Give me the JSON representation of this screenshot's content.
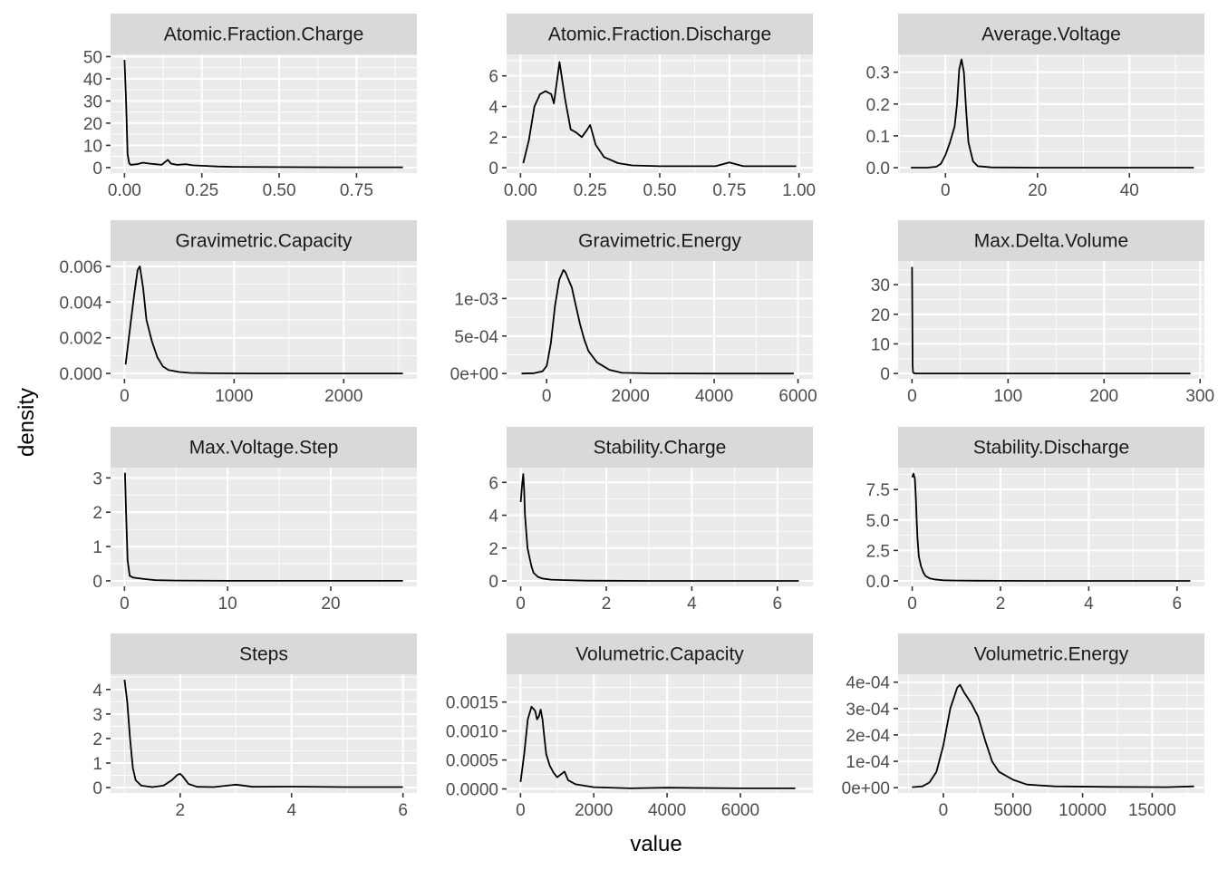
{
  "figure": {
    "xlabel": "value",
    "ylabel": "density",
    "panel_bg": "#ebebeb",
    "strip_bg": "#d9d9d9",
    "grid_major": "#ffffff",
    "line_color": "#000000"
  },
  "chart_data": [
    {
      "type": "line",
      "title": "Atomic.Fraction.Charge",
      "xlim": [
        -0.045,
        0.945
      ],
      "ylim": [
        -2.5,
        51
      ],
      "xticks": [
        0,
        0.25,
        0.5,
        0.75
      ],
      "xtick_labels": [
        "0.00",
        "0.25",
        "0.50",
        "0.75"
      ],
      "yticks": [
        0,
        10,
        20,
        30,
        40,
        50
      ],
      "ytick_labels": [
        "0",
        "10",
        "20",
        "30",
        "40",
        "50"
      ],
      "x": [
        0,
        0.005,
        0.01,
        0.015,
        0.02,
        0.04,
        0.06,
        0.08,
        0.1,
        0.12,
        0.14,
        0.15,
        0.17,
        0.2,
        0.22,
        0.25,
        0.3,
        0.35,
        0.5,
        0.7,
        0.9
      ],
      "y": [
        48.5,
        30,
        6,
        2,
        1.2,
        1.5,
        2.2,
        1.8,
        1.5,
        1.2,
        3.5,
        1.8,
        1.2,
        1.5,
        1.0,
        0.8,
        0.5,
        0.3,
        0.2,
        0.1,
        0.1
      ]
    },
    {
      "type": "line",
      "title": "Atomic.Fraction.Discharge",
      "xlim": [
        -0.05,
        1.05
      ],
      "ylim": [
        -0.35,
        7.4
      ],
      "xticks": [
        0,
        0.25,
        0.5,
        0.75,
        1.0
      ],
      "xtick_labels": [
        "0.00",
        "0.25",
        "0.50",
        "0.75",
        "1.00"
      ],
      "yticks": [
        0,
        2,
        4,
        6
      ],
      "ytick_labels": [
        "0",
        "2",
        "4",
        "6"
      ],
      "x": [
        0.01,
        0.03,
        0.05,
        0.07,
        0.09,
        0.11,
        0.12,
        0.14,
        0.16,
        0.18,
        0.2,
        0.22,
        0.24,
        0.25,
        0.27,
        0.3,
        0.35,
        0.4,
        0.5,
        0.6,
        0.7,
        0.75,
        0.8,
        0.9,
        0.99
      ],
      "y": [
        0.3,
        1.8,
        4.0,
        4.8,
        5.0,
        4.8,
        4.2,
        6.9,
        4.5,
        2.5,
        2.3,
        2.0,
        2.5,
        2.8,
        1.5,
        0.7,
        0.3,
        0.15,
        0.1,
        0.1,
        0.1,
        0.35,
        0.1,
        0.1,
        0.1
      ]
    },
    {
      "type": "line",
      "title": "Average.Voltage",
      "xlim": [
        -10.3,
        56.3
      ],
      "ylim": [
        -0.017,
        0.356
      ],
      "xticks": [
        0,
        20,
        40
      ],
      "xtick_labels": [
        "0",
        "20",
        "40"
      ],
      "yticks": [
        0,
        0.1,
        0.2,
        0.3
      ],
      "ytick_labels": [
        "0.0",
        "0.1",
        "0.2",
        "0.3"
      ],
      "x": [
        -7.5,
        -4,
        -2,
        -1,
        0,
        1,
        2,
        2.5,
        3,
        3.5,
        4,
        4.5,
        5,
        6,
        7,
        10,
        20,
        35,
        54
      ],
      "y": [
        0,
        0,
        0.003,
        0.012,
        0.04,
        0.08,
        0.13,
        0.2,
        0.31,
        0.34,
        0.3,
        0.18,
        0.08,
        0.02,
        0.005,
        0.001,
        0,
        0,
        0
      ]
    },
    {
      "type": "line",
      "title": "Gravimetric.Capacity",
      "xlim": [
        -127,
        2667
      ],
      "ylim": [
        -0.0003,
        0.0063
      ],
      "xticks": [
        0,
        1000,
        2000
      ],
      "xtick_labels": [
        "0",
        "1000",
        "2000"
      ],
      "yticks": [
        0,
        0.002,
        0.004,
        0.006
      ],
      "ytick_labels": [
        "0.000",
        "0.002",
        "0.004",
        "0.006"
      ],
      "x": [
        10,
        30,
        60,
        90,
        120,
        140,
        170,
        200,
        250,
        300,
        350,
        400,
        500,
        600,
        800,
        1200,
        1800,
        2540
      ],
      "y": [
        0.0005,
        0.0015,
        0.003,
        0.0045,
        0.0058,
        0.006,
        0.0048,
        0.003,
        0.0018,
        0.0009,
        0.0004,
        0.0002,
        8e-05,
        3e-05,
        1e-05,
        0,
        0,
        0
      ]
    },
    {
      "type": "line",
      "title": "Gravimetric.Energy",
      "xlim": [
        -956,
        6356
      ],
      "ylim": [
        -7e-05,
        0.0015
      ],
      "xticks": [
        0,
        2000,
        4000,
        6000
      ],
      "xtick_labels": [
        "0",
        "2000",
        "4000",
        "6000"
      ],
      "yticks": [
        0,
        0.0005,
        0.001
      ],
      "ytick_labels": [
        "0e+00",
        "5e-04",
        "1e-03"
      ],
      "x": [
        -600,
        -300,
        -100,
        0,
        100,
        200,
        300,
        400,
        450,
        500,
        600,
        700,
        800,
        900,
        1000,
        1200,
        1500,
        1800,
        2500,
        4000,
        5900
      ],
      "y": [
        0,
        5e-06,
        3e-05,
        0.0001,
        0.0004,
        0.0009,
        0.00125,
        0.00138,
        0.00135,
        0.00128,
        0.00115,
        0.0009,
        0.00065,
        0.00045,
        0.0003,
        0.00015,
        5e-05,
        1e-05,
        2e-06,
        0,
        0
      ]
    },
    {
      "type": "line",
      "title": "Max.Delta.Volume",
      "xlim": [
        -14.5,
        304.5
      ],
      "ylim": [
        -1.8,
        38
      ],
      "xticks": [
        0,
        100,
        200,
        300
      ],
      "xtick_labels": [
        "0",
        "100",
        "200",
        "300"
      ],
      "yticks": [
        0,
        10,
        20,
        30
      ],
      "ytick_labels": [
        "0",
        "10",
        "20",
        "30"
      ],
      "x": [
        0.05,
        0.3,
        0.6,
        1,
        2,
        5,
        10,
        50,
        150,
        290
      ],
      "y": [
        36,
        20,
        3,
        0.5,
        0.1,
        0.02,
        0,
        0,
        0,
        0
      ]
    },
    {
      "type": "line",
      "title": "Max.Voltage.Step",
      "xlim": [
        -1.35,
        28.35
      ],
      "ylim": [
        -0.16,
        3.3
      ],
      "xticks": [
        0,
        10,
        20
      ],
      "xtick_labels": [
        "0",
        "10",
        "20"
      ],
      "yticks": [
        0,
        1,
        2,
        3
      ],
      "ytick_labels": [
        "0",
        "1",
        "2",
        "3"
      ],
      "x": [
        0.05,
        0.15,
        0.3,
        0.5,
        0.8,
        1.2,
        2,
        3,
        5,
        10,
        20,
        27
      ],
      "y": [
        3.15,
        2.0,
        0.6,
        0.15,
        0.1,
        0.08,
        0.05,
        0.02,
        0.01,
        0,
        0,
        0
      ]
    },
    {
      "type": "line",
      "title": "Stability.Charge",
      "xlim": [
        -0.33,
        6.83
      ],
      "ylim": [
        -0.33,
        6.9
      ],
      "xticks": [
        0,
        2,
        4,
        6
      ],
      "xtick_labels": [
        "0",
        "2",
        "4",
        "6"
      ],
      "yticks": [
        0,
        2,
        4,
        6
      ],
      "ytick_labels": [
        "0",
        "2",
        "4",
        "6"
      ],
      "x": [
        0,
        0.03,
        0.06,
        0.08,
        0.1,
        0.13,
        0.16,
        0.2,
        0.25,
        0.3,
        0.4,
        0.5,
        0.7,
        1,
        1.5,
        2,
        3,
        4,
        5,
        6.5
      ],
      "y": [
        4.8,
        5.8,
        6.5,
        5.5,
        4.0,
        3.0,
        2.0,
        1.5,
        0.9,
        0.5,
        0.25,
        0.15,
        0.08,
        0.05,
        0.02,
        0.01,
        0,
        0,
        0,
        0
      ]
    },
    {
      "type": "line",
      "title": "Stability.Discharge",
      "xlim": [
        -0.32,
        6.62
      ],
      "ylim": [
        -0.45,
        9.3
      ],
      "xticks": [
        0,
        2,
        4,
        6
      ],
      "xtick_labels": [
        "0",
        "2",
        "4",
        "6"
      ],
      "yticks": [
        0,
        2.5,
        5,
        7.5
      ],
      "ytick_labels": [
        "0.0",
        "2.5",
        "5.0",
        "7.5"
      ],
      "x": [
        0,
        0.03,
        0.06,
        0.08,
        0.1,
        0.12,
        0.15,
        0.2,
        0.25,
        0.3,
        0.4,
        0.5,
        0.7,
        1,
        1.5,
        2,
        3,
        4,
        5,
        6.3
      ],
      "y": [
        8.5,
        8.8,
        8.4,
        7.0,
        5.0,
        3.5,
        2.0,
        1.2,
        0.7,
        0.4,
        0.2,
        0.12,
        0.05,
        0.03,
        0.01,
        0.005,
        0,
        0,
        0,
        0
      ]
    },
    {
      "type": "line",
      "title": "Steps",
      "xlim": [
        0.75,
        6.25
      ],
      "ylim": [
        -0.22,
        4.62
      ],
      "xticks": [
        2,
        4,
        6
      ],
      "xtick_labels": [
        "2",
        "4",
        "6"
      ],
      "yticks": [
        0,
        1,
        2,
        3,
        4
      ],
      "ytick_labels": [
        "0",
        "1",
        "2",
        "3",
        "4"
      ],
      "x": [
        1,
        1.05,
        1.1,
        1.15,
        1.2,
        1.3,
        1.5,
        1.7,
        1.85,
        1.95,
        2,
        2.05,
        2.15,
        2.3,
        2.6,
        3,
        3.3,
        4,
        5,
        6
      ],
      "y": [
        4.4,
        3.5,
        2.0,
        0.8,
        0.3,
        0.08,
        0.02,
        0.08,
        0.3,
        0.52,
        0.56,
        0.45,
        0.15,
        0.03,
        0.02,
        0.12,
        0.03,
        0.04,
        0.02,
        0.02
      ]
    },
    {
      "type": "line",
      "title": "Volumetric.Capacity",
      "xlim": [
        -380,
        7980
      ],
      "ylim": [
        -7e-05,
        0.00198
      ],
      "xticks": [
        0,
        2000,
        4000,
        6000
      ],
      "xtick_labels": [
        "0",
        "2000",
        "4000",
        "6000"
      ],
      "yticks": [
        0,
        0.0005,
        0.001,
        0.0015
      ],
      "ytick_labels": [
        "0.0000",
        "0.0005",
        "0.0010",
        "0.0015"
      ],
      "x": [
        0,
        100,
        200,
        300,
        400,
        450,
        500,
        550,
        600,
        650,
        700,
        800,
        900,
        1000,
        1100,
        1200,
        1300,
        1500,
        2000,
        3000,
        4000,
        6000,
        7500
      ],
      "y": [
        0.00012,
        0.0006,
        0.0012,
        0.00142,
        0.00135,
        0.0012,
        0.00125,
        0.00137,
        0.0012,
        0.0009,
        0.0006,
        0.0004,
        0.00028,
        0.0002,
        0.00025,
        0.0003,
        0.00015,
        8e-05,
        3e-05,
        1e-05,
        2e-05,
        1e-05,
        1e-05
      ]
    },
    {
      "type": "line",
      "title": "Volumetric.Energy",
      "xlim": [
        -3250,
        18750
      ],
      "ylim": [
        -2e-05,
        0.00043
      ],
      "xticks": [
        0,
        5000,
        10000,
        15000
      ],
      "xtick_labels": [
        "0",
        "5000",
        "10000",
        "15000"
      ],
      "yticks": [
        0,
        0.0001,
        0.0002,
        0.0003,
        0.0004
      ],
      "ytick_labels": [
        "0e+00",
        "1e-04",
        "2e-04",
        "3e-04",
        "4e-04"
      ],
      "x": [
        -2250,
        -1500,
        -1000,
        -500,
        0,
        500,
        1000,
        1200,
        1500,
        2000,
        2500,
        3000,
        3500,
        4000,
        5000,
        6000,
        8000,
        12000,
        16000,
        18000
      ],
      "y": [
        2e-06,
        5e-06,
        2e-05,
        6e-05,
        0.00016,
        0.0003,
        0.00038,
        0.00039,
        0.00036,
        0.00032,
        0.00027,
        0.00018,
        0.0001,
        6e-05,
        3e-05,
        1.2e-05,
        5e-06,
        3e-06,
        2e-06,
        5e-06
      ]
    }
  ]
}
